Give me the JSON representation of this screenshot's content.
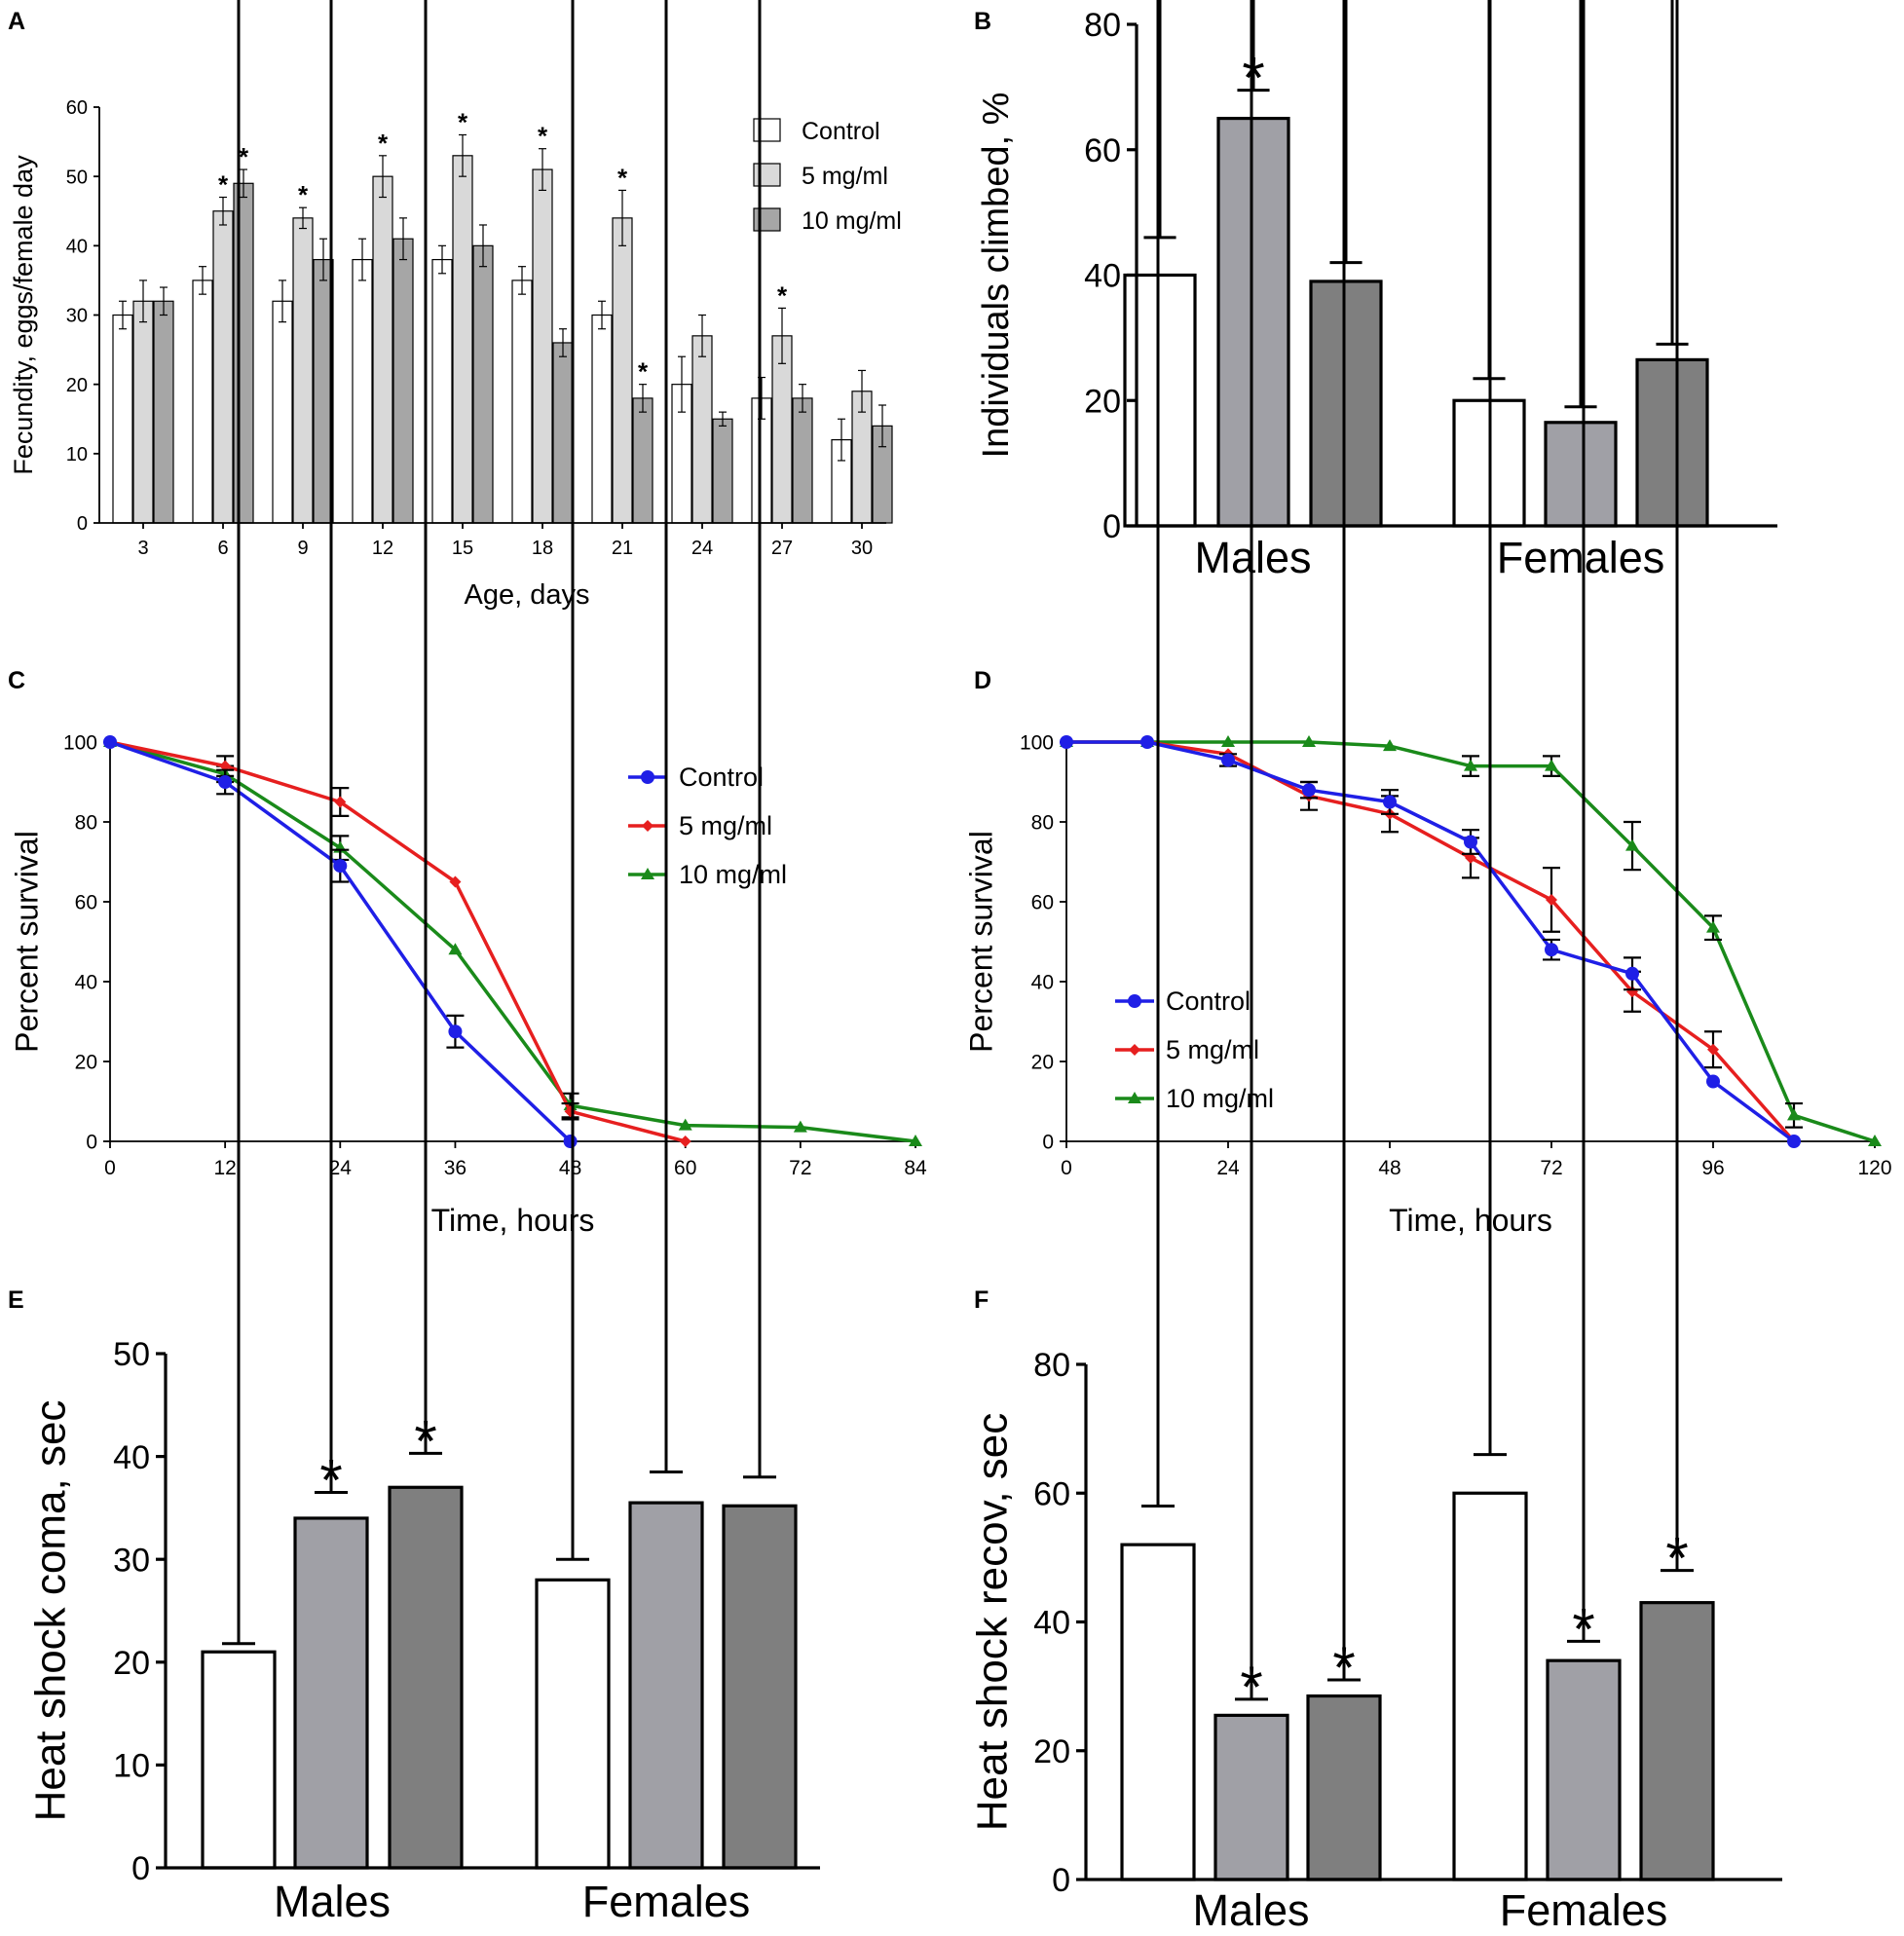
{
  "figure_colors": {
    "control_fill": "#ffffff",
    "mg5_fill_A": "#d9d9d9",
    "mg10_fill_A": "#a6a6a6",
    "mg5_fill": "#a0a0a6",
    "mg10_fill": "#7f7f7f",
    "control_line": "#1f1fe6",
    "mg5_line": "#e61f1f",
    "mg10_line": "#1a8a1a"
  },
  "chart_data": [
    {
      "id": "A",
      "panel_label": "A",
      "type": "bar",
      "xlabel": "Age, days",
      "ylabel": "Fecundity, eggs/female day",
      "ylim": [
        0,
        60
      ],
      "yticks": [
        "0",
        "10",
        "20",
        "30",
        "40",
        "50",
        "60"
      ],
      "categories": [
        "3",
        "6",
        "9",
        "12",
        "15",
        "18",
        "21",
        "24",
        "27",
        "30"
      ],
      "legend_position": "top-right",
      "series": [
        {
          "name": "Control",
          "values": [
            30,
            35,
            32,
            38,
            38,
            35,
            30,
            20,
            18,
            12
          ],
          "errors": [
            2,
            2,
            3,
            3,
            2,
            2,
            2,
            4,
            3,
            3
          ],
          "stars": [
            false,
            false,
            false,
            false,
            false,
            false,
            false,
            false,
            false,
            false
          ]
        },
        {
          "name": "5 mg/ml",
          "values": [
            32,
            45,
            44,
            50,
            53,
            51,
            44,
            27,
            27,
            19
          ],
          "errors": [
            3,
            2,
            1.5,
            3,
            3,
            3,
            4,
            3,
            4,
            3
          ],
          "stars": [
            false,
            true,
            true,
            true,
            true,
            true,
            true,
            false,
            true,
            false
          ]
        },
        {
          "name": "10 mg/ml",
          "values": [
            32,
            49,
            38,
            41,
            40,
            26,
            18,
            15,
            18,
            14
          ],
          "errors": [
            2,
            2,
            3,
            3,
            3,
            2,
            2,
            1,
            2,
            3
          ],
          "stars": [
            false,
            true,
            false,
            false,
            false,
            false,
            true,
            false,
            false,
            false
          ]
        }
      ]
    },
    {
      "id": "B",
      "panel_label": "B",
      "type": "bar",
      "xlabel": "",
      "ylabel": "Individuals climbed, %",
      "ylim": [
        0,
        80
      ],
      "yticks": [
        "0",
        "20",
        "40",
        "60",
        "80"
      ],
      "categories": [
        "Males",
        "Females"
      ],
      "series": [
        {
          "name": "Control",
          "values": [
            40,
            20
          ],
          "errors": [
            6,
            3.5
          ],
          "stars": [
            false,
            false
          ]
        },
        {
          "name": "5 mg/ml",
          "values": [
            65,
            16.5
          ],
          "errors": [
            4.5,
            2.5
          ],
          "stars": [
            true,
            false
          ]
        },
        {
          "name": "10 mg/ml",
          "values": [
            39,
            26.5
          ],
          "errors": [
            3,
            2.5
          ],
          "stars": [
            false,
            false
          ]
        }
      ]
    },
    {
      "id": "C",
      "panel_label": "C",
      "type": "line",
      "xlabel": "Time, hours",
      "ylabel": "Percent survival",
      "xlim": [
        0,
        84
      ],
      "ylim": [
        0,
        100
      ],
      "xticks": [
        "0",
        "12",
        "24",
        "36",
        "48",
        "60",
        "72",
        "84"
      ],
      "yticks": [
        "0",
        "20",
        "40",
        "60",
        "80",
        "100"
      ],
      "legend_position": "top-right",
      "series": [
        {
          "name": "Control",
          "marker": "circle",
          "x": [
            0,
            12,
            24,
            36,
            48
          ],
          "y": [
            100,
            90,
            69,
            27.5,
            0
          ],
          "errors": [
            0,
            3,
            4,
            4,
            0
          ]
        },
        {
          "name": "5 mg/ml",
          "marker": "diamond",
          "x": [
            0,
            12,
            24,
            36,
            48,
            60
          ],
          "y": [
            100,
            94,
            85,
            65,
            7.5,
            0
          ],
          "errors": [
            0,
            2.5,
            3.5,
            0,
            2,
            0
          ]
        },
        {
          "name": "10 mg/ml",
          "marker": "triangle",
          "x": [
            0,
            12,
            24,
            36,
            48,
            60,
            72,
            84
          ],
          "y": [
            100,
            92,
            73.5,
            48,
            9,
            4,
            3.5,
            0
          ],
          "errors": [
            0,
            2,
            3,
            0,
            3,
            0,
            0,
            0
          ]
        }
      ]
    },
    {
      "id": "D",
      "panel_label": "D",
      "type": "line",
      "xlabel": "Time, hours",
      "ylabel": "Percent survival",
      "xlim": [
        0,
        120
      ],
      "ylim": [
        0,
        100
      ],
      "xticks": [
        "0",
        "24",
        "48",
        "72",
        "96",
        "120"
      ],
      "yticks": [
        "0",
        "20",
        "40",
        "60",
        "80",
        "100"
      ],
      "legend_position": "bottom-left",
      "series": [
        {
          "name": "Control",
          "marker": "circle",
          "x": [
            0,
            12,
            24,
            36,
            48,
            60,
            72,
            84,
            96,
            108
          ],
          "y": [
            100,
            100,
            95.5,
            88,
            85,
            75,
            48,
            42,
            15,
            0
          ],
          "errors": [
            0,
            0,
            1.5,
            2,
            3,
            3,
            2.5,
            4,
            0,
            0
          ]
        },
        {
          "name": "5 mg/ml",
          "marker": "diamond",
          "x": [
            0,
            12,
            24,
            36,
            48,
            60,
            72,
            84,
            96,
            108
          ],
          "y": [
            100,
            100,
            97,
            86.5,
            82,
            71,
            60.5,
            37.5,
            23,
            0
          ],
          "errors": [
            0,
            0,
            0,
            3.5,
            4.5,
            5,
            8,
            5,
            4.5,
            0
          ]
        },
        {
          "name": "10 mg/ml",
          "marker": "triangle",
          "x": [
            0,
            12,
            24,
            36,
            48,
            60,
            72,
            84,
            96,
            108,
            120
          ],
          "y": [
            100,
            100,
            100,
            100,
            99,
            94,
            94,
            74,
            53.5,
            6.5,
            0
          ],
          "errors": [
            0,
            0,
            0,
            0,
            0,
            2.5,
            2.5,
            6,
            3,
            3,
            0
          ]
        }
      ]
    },
    {
      "id": "E",
      "panel_label": "E",
      "type": "bar",
      "xlabel": "",
      "ylabel": "Heat shock coma, sec",
      "ylim": [
        0,
        50
      ],
      "yticks": [
        "0",
        "10",
        "20",
        "30",
        "40",
        "50"
      ],
      "categories": [
        "Males",
        "Females"
      ],
      "series": [
        {
          "name": "Control",
          "values": [
            21,
            28
          ],
          "errors": [
            0.8,
            2
          ],
          "stars": [
            false,
            false
          ]
        },
        {
          "name": "5 mg/ml",
          "values": [
            34,
            35.5
          ],
          "errors": [
            2.5,
            3
          ],
          "stars": [
            true,
            false
          ]
        },
        {
          "name": "10 mg/ml",
          "values": [
            37,
            35.2
          ],
          "errors": [
            3.3,
            2.8
          ],
          "stars": [
            true,
            false
          ]
        }
      ]
    },
    {
      "id": "F",
      "panel_label": "F",
      "type": "bar",
      "xlabel": "",
      "ylabel": "Heat shock recov, sec",
      "ylim": [
        0,
        80
      ],
      "yticks": [
        "0",
        "20",
        "40",
        "60",
        "80"
      ],
      "categories": [
        "Males",
        "Females"
      ],
      "series": [
        {
          "name": "Control",
          "values": [
            52,
            60
          ],
          "errors": [
            6,
            6
          ],
          "stars": [
            false,
            false
          ]
        },
        {
          "name": "5 mg/ml",
          "values": [
            25.5,
            34
          ],
          "errors": [
            2.5,
            3
          ],
          "stars": [
            true,
            true
          ]
        },
        {
          "name": "10 mg/ml",
          "values": [
            28.5,
            43
          ],
          "errors": [
            2.5,
            5
          ],
          "stars": [
            true,
            true
          ]
        }
      ]
    }
  ]
}
